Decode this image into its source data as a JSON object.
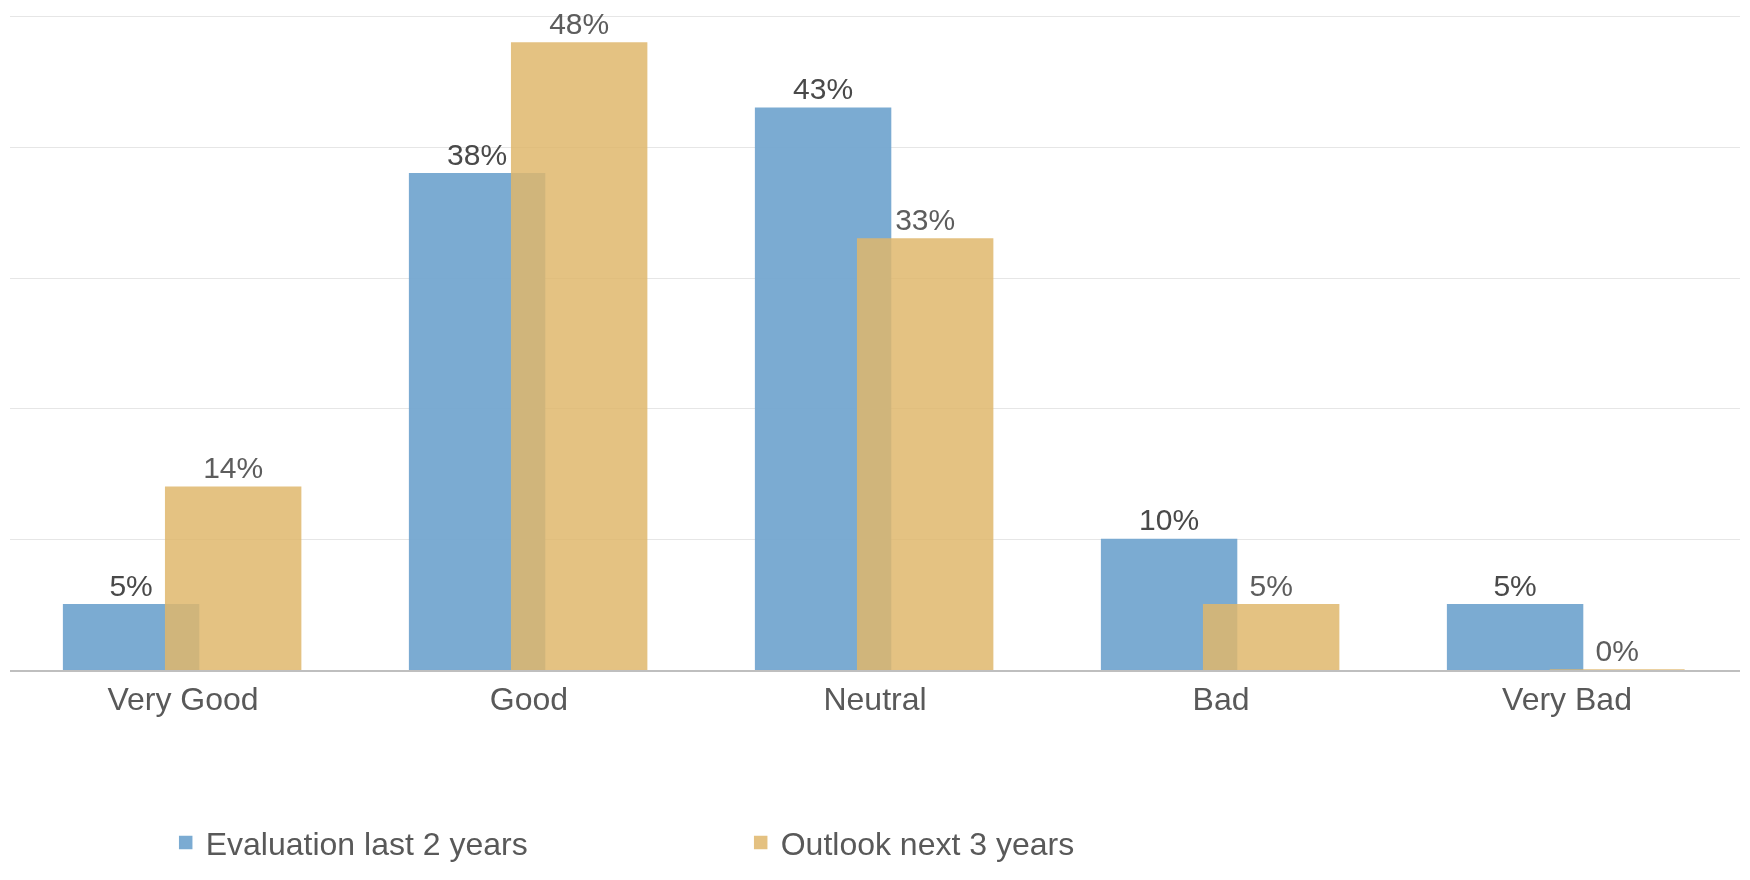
{
  "chart_data": {
    "type": "bar",
    "categories": [
      "Very Good",
      "Good",
      "Neutral",
      "Bad",
      "Very Bad"
    ],
    "series": [
      {
        "name": "Evaluation last 2 years",
        "color": "#74a7d0",
        "values": [
          5,
          38,
          43,
          10,
          5
        ],
        "value_labels": [
          "5%",
          "38%",
          "43%",
          "10%",
          "5%"
        ]
      },
      {
        "name": "Outlook next 3 years",
        "color": "#e0b76c",
        "values": [
          14,
          48,
          33,
          5,
          0
        ],
        "value_labels": [
          "14%",
          "48%",
          "33%",
          "5%",
          "0%"
        ]
      }
    ],
    "grid": "y",
    "legend": "bottom left",
    "tick_labels": "x"
  }
}
